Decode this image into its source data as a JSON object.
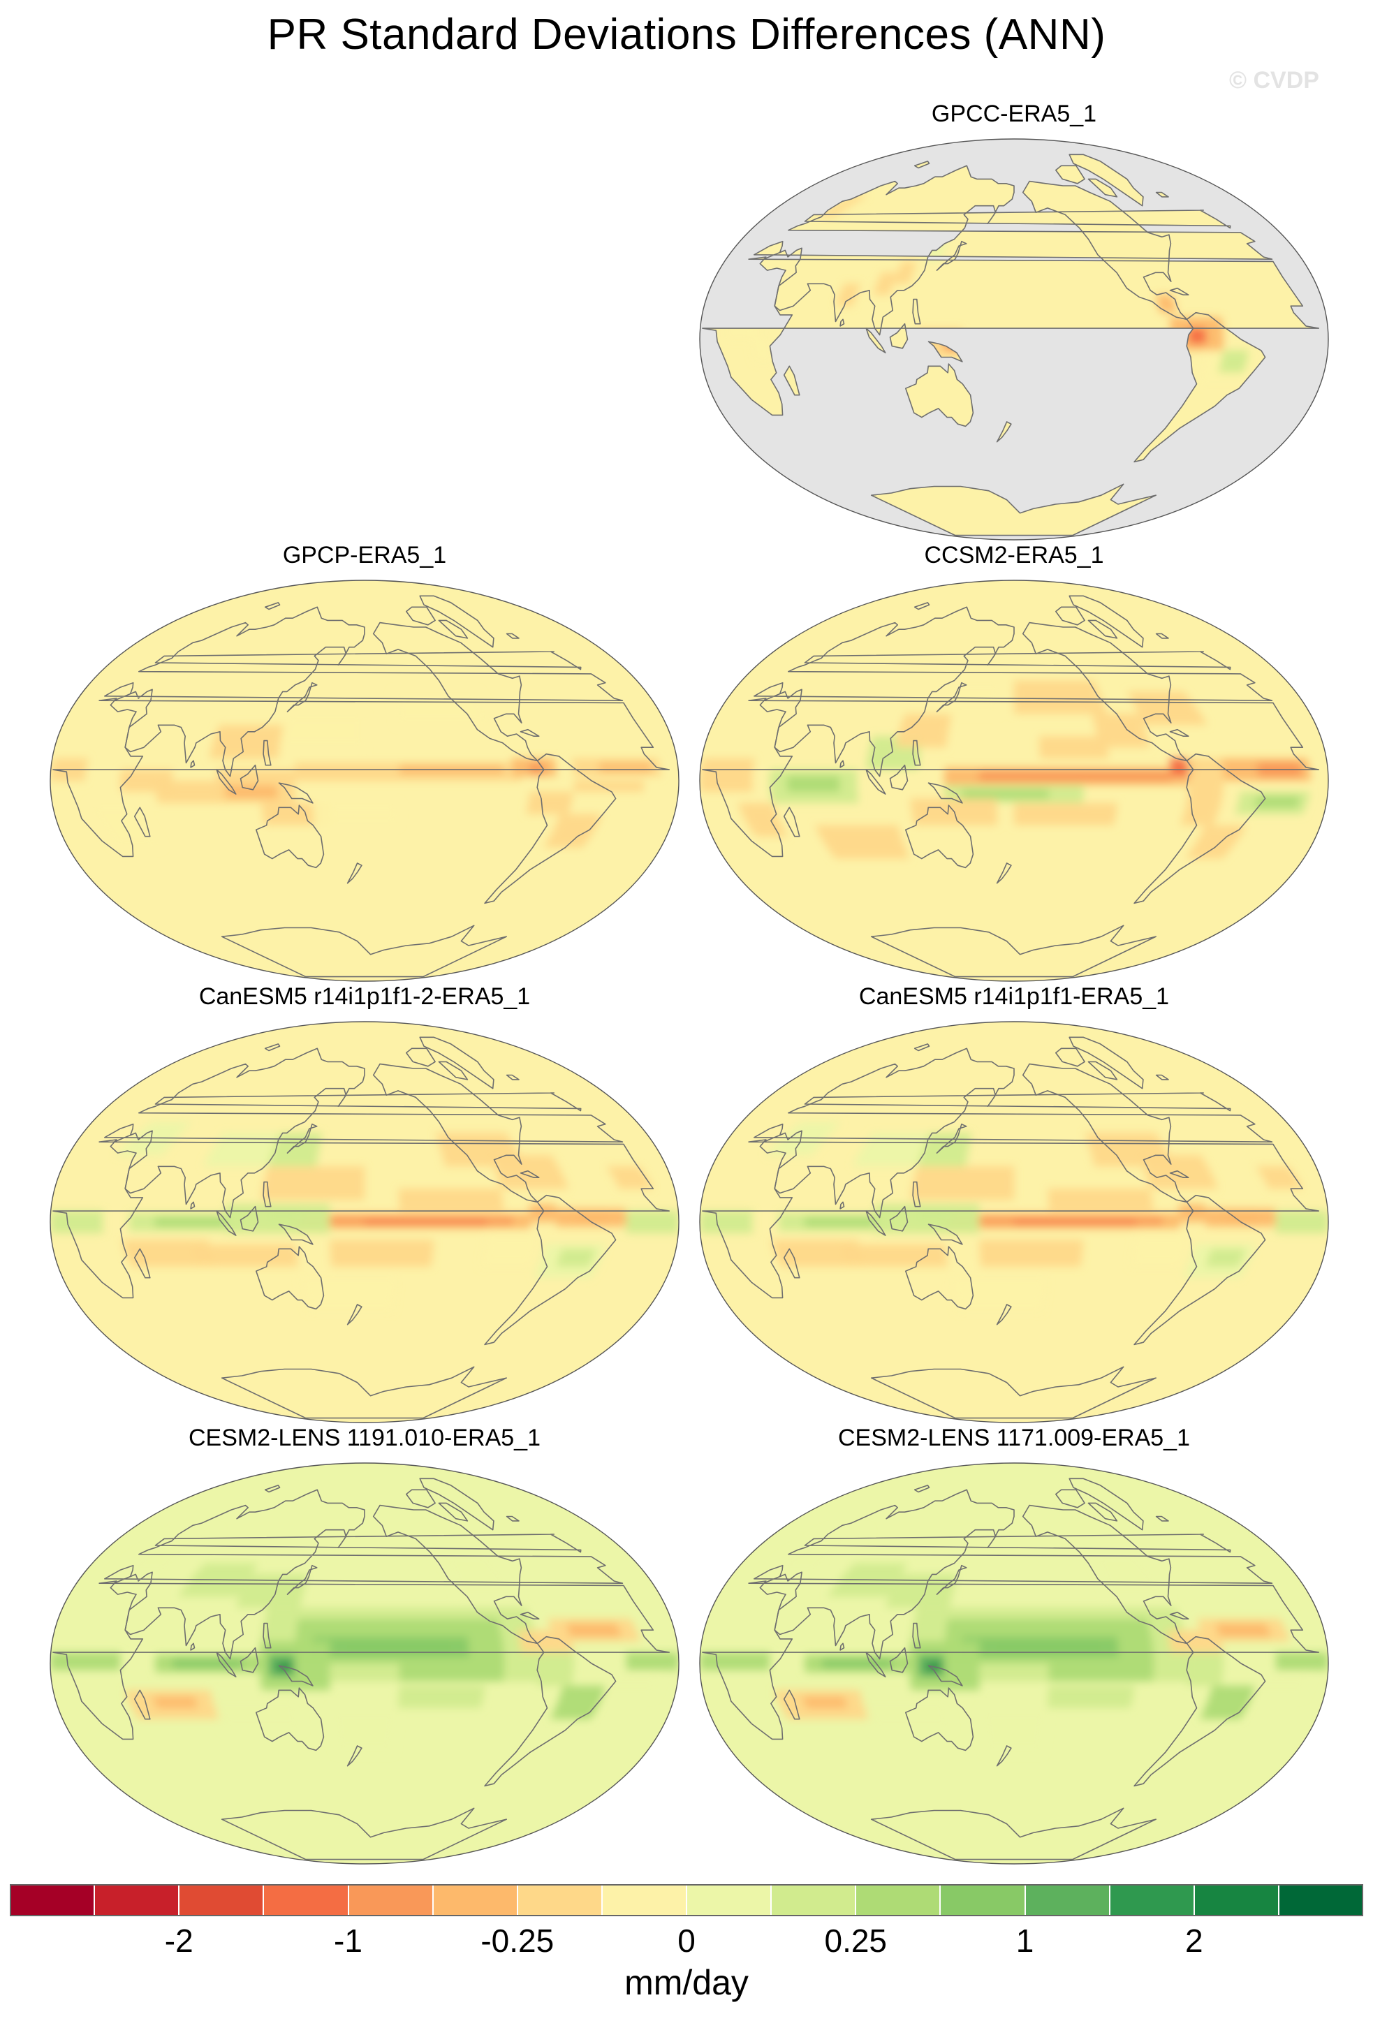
{
  "page": {
    "title": "PR Standard Deviations Differences (ANN)",
    "watermark": "© CVDP"
  },
  "panels": [
    {
      "id": "p1",
      "title": "GPCC-ERA5_1",
      "variant": "obs_land"
    },
    {
      "id": "p2",
      "title": "GPCP-ERA5_1",
      "variant": "obs"
    },
    {
      "id": "p3",
      "title": "CCSM2-ERA5_1",
      "variant": "ccsm"
    },
    {
      "id": "p4",
      "title": "CanESM5 r14i1p1f1-2-ERA5_1",
      "variant": "canesm"
    },
    {
      "id": "p5",
      "title": "CanESM5 r14i1p1f1-ERA5_1",
      "variant": "canesm"
    },
    {
      "id": "p6",
      "title": "CESM2-LENS 1191.010-ERA5_1",
      "variant": "cesm"
    },
    {
      "id": "p7",
      "title": "CESM2-LENS 1171.009-ERA5_1",
      "variant": "cesm"
    }
  ],
  "colorbar": {
    "units": "mm/day",
    "colors": [
      "#a50026",
      "#c8202a",
      "#e04b33",
      "#f46d43",
      "#f99858",
      "#fdb96b",
      "#fed889",
      "#fdf2a8",
      "#ecf6a8",
      "#d1eb8e",
      "#aedb75",
      "#88c966",
      "#5db15d",
      "#2f994f",
      "#178541",
      "#006837"
    ],
    "tick_labels": [
      "-2",
      "-1",
      "-0.25",
      "0",
      "0.25",
      "1",
      "2"
    ],
    "tick_boundaries": [
      2,
      4,
      6,
      8,
      10,
      12,
      14
    ]
  },
  "colors": {
    "neutral": "#fbf3b1",
    "land_mask": "#e4e4e4",
    "coastline": "#6e6e6e"
  }
}
